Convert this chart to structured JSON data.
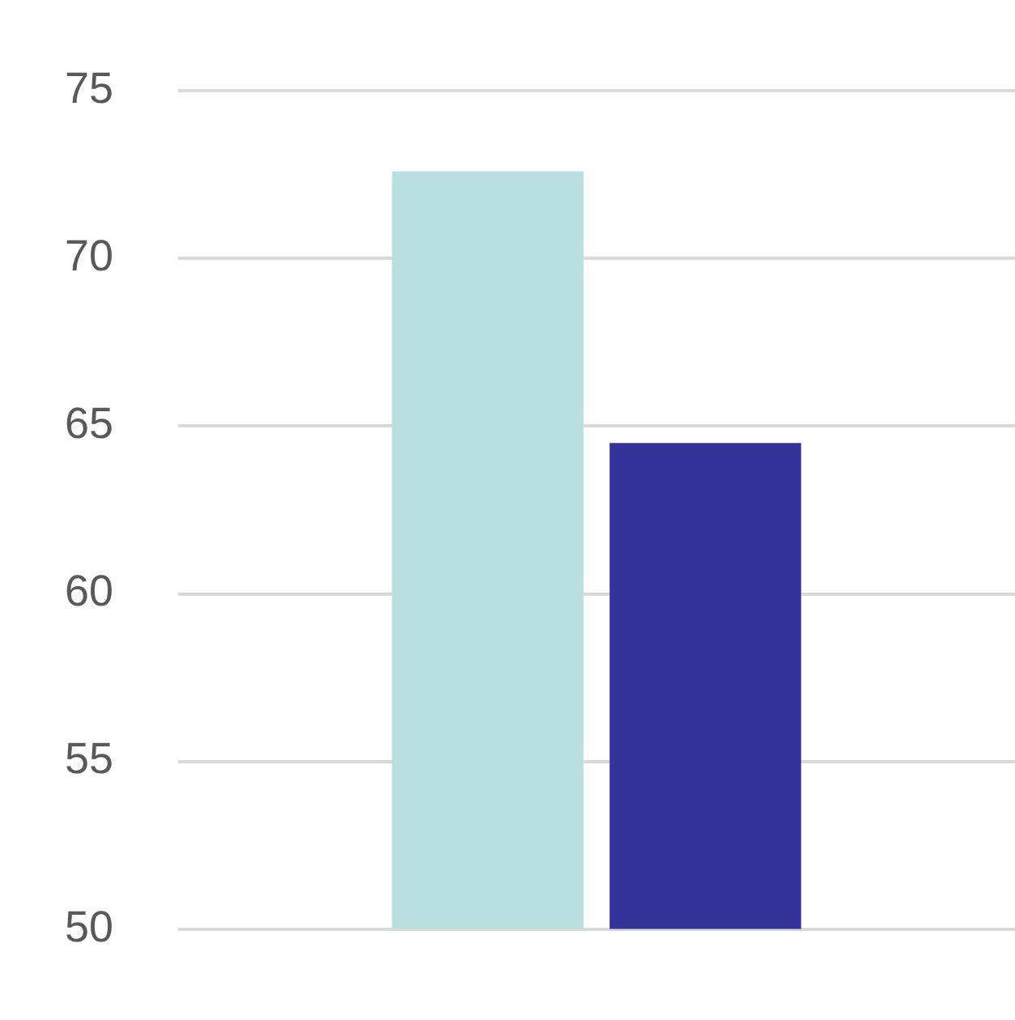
{
  "chart_data": {
    "type": "bar",
    "categories": [
      null
    ],
    "series": [
      {
        "color": "#b9dfe1",
        "values": [
          72.6
        ]
      },
      {
        "color": "#343399",
        "values": [
          64.5
        ]
      }
    ],
    "ylim": [
      50,
      75
    ],
    "yticks": [
      50,
      55,
      60,
      65,
      70,
      75
    ],
    "grid": "y",
    "tick_labels": "y",
    "legend": false
  }
}
